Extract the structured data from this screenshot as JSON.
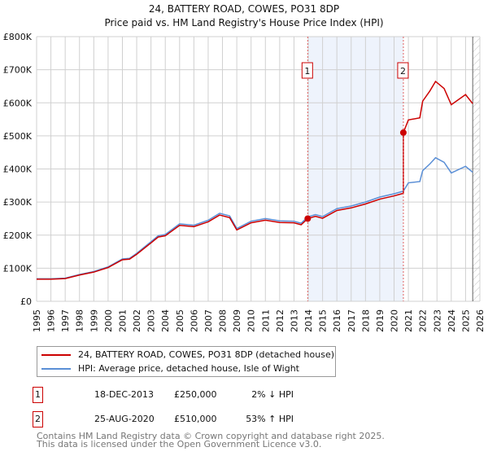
{
  "chart_data": {
    "type": "line",
    "title": "24, BATTERY ROAD, COWES, PO31 8DP",
    "subtitle": "Price paid vs. HM Land Registry's House Price Index (HPI)",
    "xlim": [
      1995,
      2026
    ],
    "ylim": [
      0,
      800000
    ],
    "y_ticks": [
      {
        "v": 0,
        "label": "£0"
      },
      {
        "v": 100000,
        "label": "£100K"
      },
      {
        "v": 200000,
        "label": "£200K"
      },
      {
        "v": 300000,
        "label": "£300K"
      },
      {
        "v": 400000,
        "label": "£400K"
      },
      {
        "v": 500000,
        "label": "£500K"
      },
      {
        "v": 600000,
        "label": "£600K"
      },
      {
        "v": 700000,
        "label": "£700K"
      },
      {
        "v": 800000,
        "label": "£800K"
      }
    ],
    "x_ticks": [
      "1995",
      "1996",
      "1997",
      "1998",
      "1999",
      "2000",
      "2001",
      "2002",
      "2003",
      "2004",
      "2005",
      "2006",
      "2007",
      "2008",
      "2009",
      "2010",
      "2011",
      "2012",
      "2013",
      "2014",
      "2015",
      "2016",
      "2017",
      "2018",
      "2019",
      "2020",
      "2021",
      "2022",
      "2023",
      "2024",
      "2025",
      "2026"
    ],
    "grid": true,
    "shaded_range": [
      2013.96,
      2020.65
    ],
    "forecast_hatch_from": 2025.5,
    "series": [
      {
        "name": "HPI: Average price, detached house, Isle of Wight",
        "color": "#5b8fd6",
        "x": [
          1995,
          1996,
          1997,
          1998,
          1999,
          2000,
          2001,
          2001.5,
          2002,
          2003,
          2003.5,
          2004,
          2005,
          2006,
          2007,
          2007.8,
          2008.5,
          2009,
          2010,
          2011,
          2012,
          2013,
          2013.5,
          2013.96,
          2014.5,
          2015,
          2016,
          2017,
          2018,
          2019,
          2020,
          2020.65,
          2021,
          2021.8,
          2022,
          2022.5,
          2022.9,
          2023.5,
          2024,
          2024.5,
          2025,
          2025.5
        ],
        "y": [
          68000,
          68000,
          70000,
          81000,
          90000,
          104000,
          128000,
          130000,
          145000,
          180000,
          198000,
          202000,
          234000,
          230000,
          245000,
          266000,
          258000,
          220000,
          242000,
          250000,
          243000,
          242000,
          236000,
          255000,
          262000,
          256000,
          280000,
          288000,
          300000,
          315000,
          325000,
          333000,
          358000,
          362000,
          395000,
          415000,
          434000,
          420000,
          388000,
          398000,
          408000,
          390000
        ]
      },
      {
        "name": "24, BATTERY ROAD, COWES, PO31 8DP (detached house)",
        "color": "#cc0000",
        "derived_from_hpi_and_sales": true
      }
    ],
    "sales": [
      {
        "id": "1",
        "x": 2013.96,
        "date": "18-DEC-2013",
        "price": 250000,
        "price_label": "£250,000",
        "hpi": "2% ↓ HPI"
      },
      {
        "id": "2",
        "x": 2020.65,
        "date": "25-AUG-2020",
        "price": 510000,
        "price_label": "£510,000",
        "hpi": "53% ↑ HPI"
      }
    ]
  },
  "legend": {
    "property": "24, BATTERY ROAD, COWES, PO31 8DP (detached house)",
    "hpi": "HPI: Average price, detached house, Isle of Wight"
  },
  "footer": {
    "line1": "Contains HM Land Registry data © Crown copyright and database right 2025.",
    "line2": "This data is licensed under the Open Government Licence v3.0."
  }
}
